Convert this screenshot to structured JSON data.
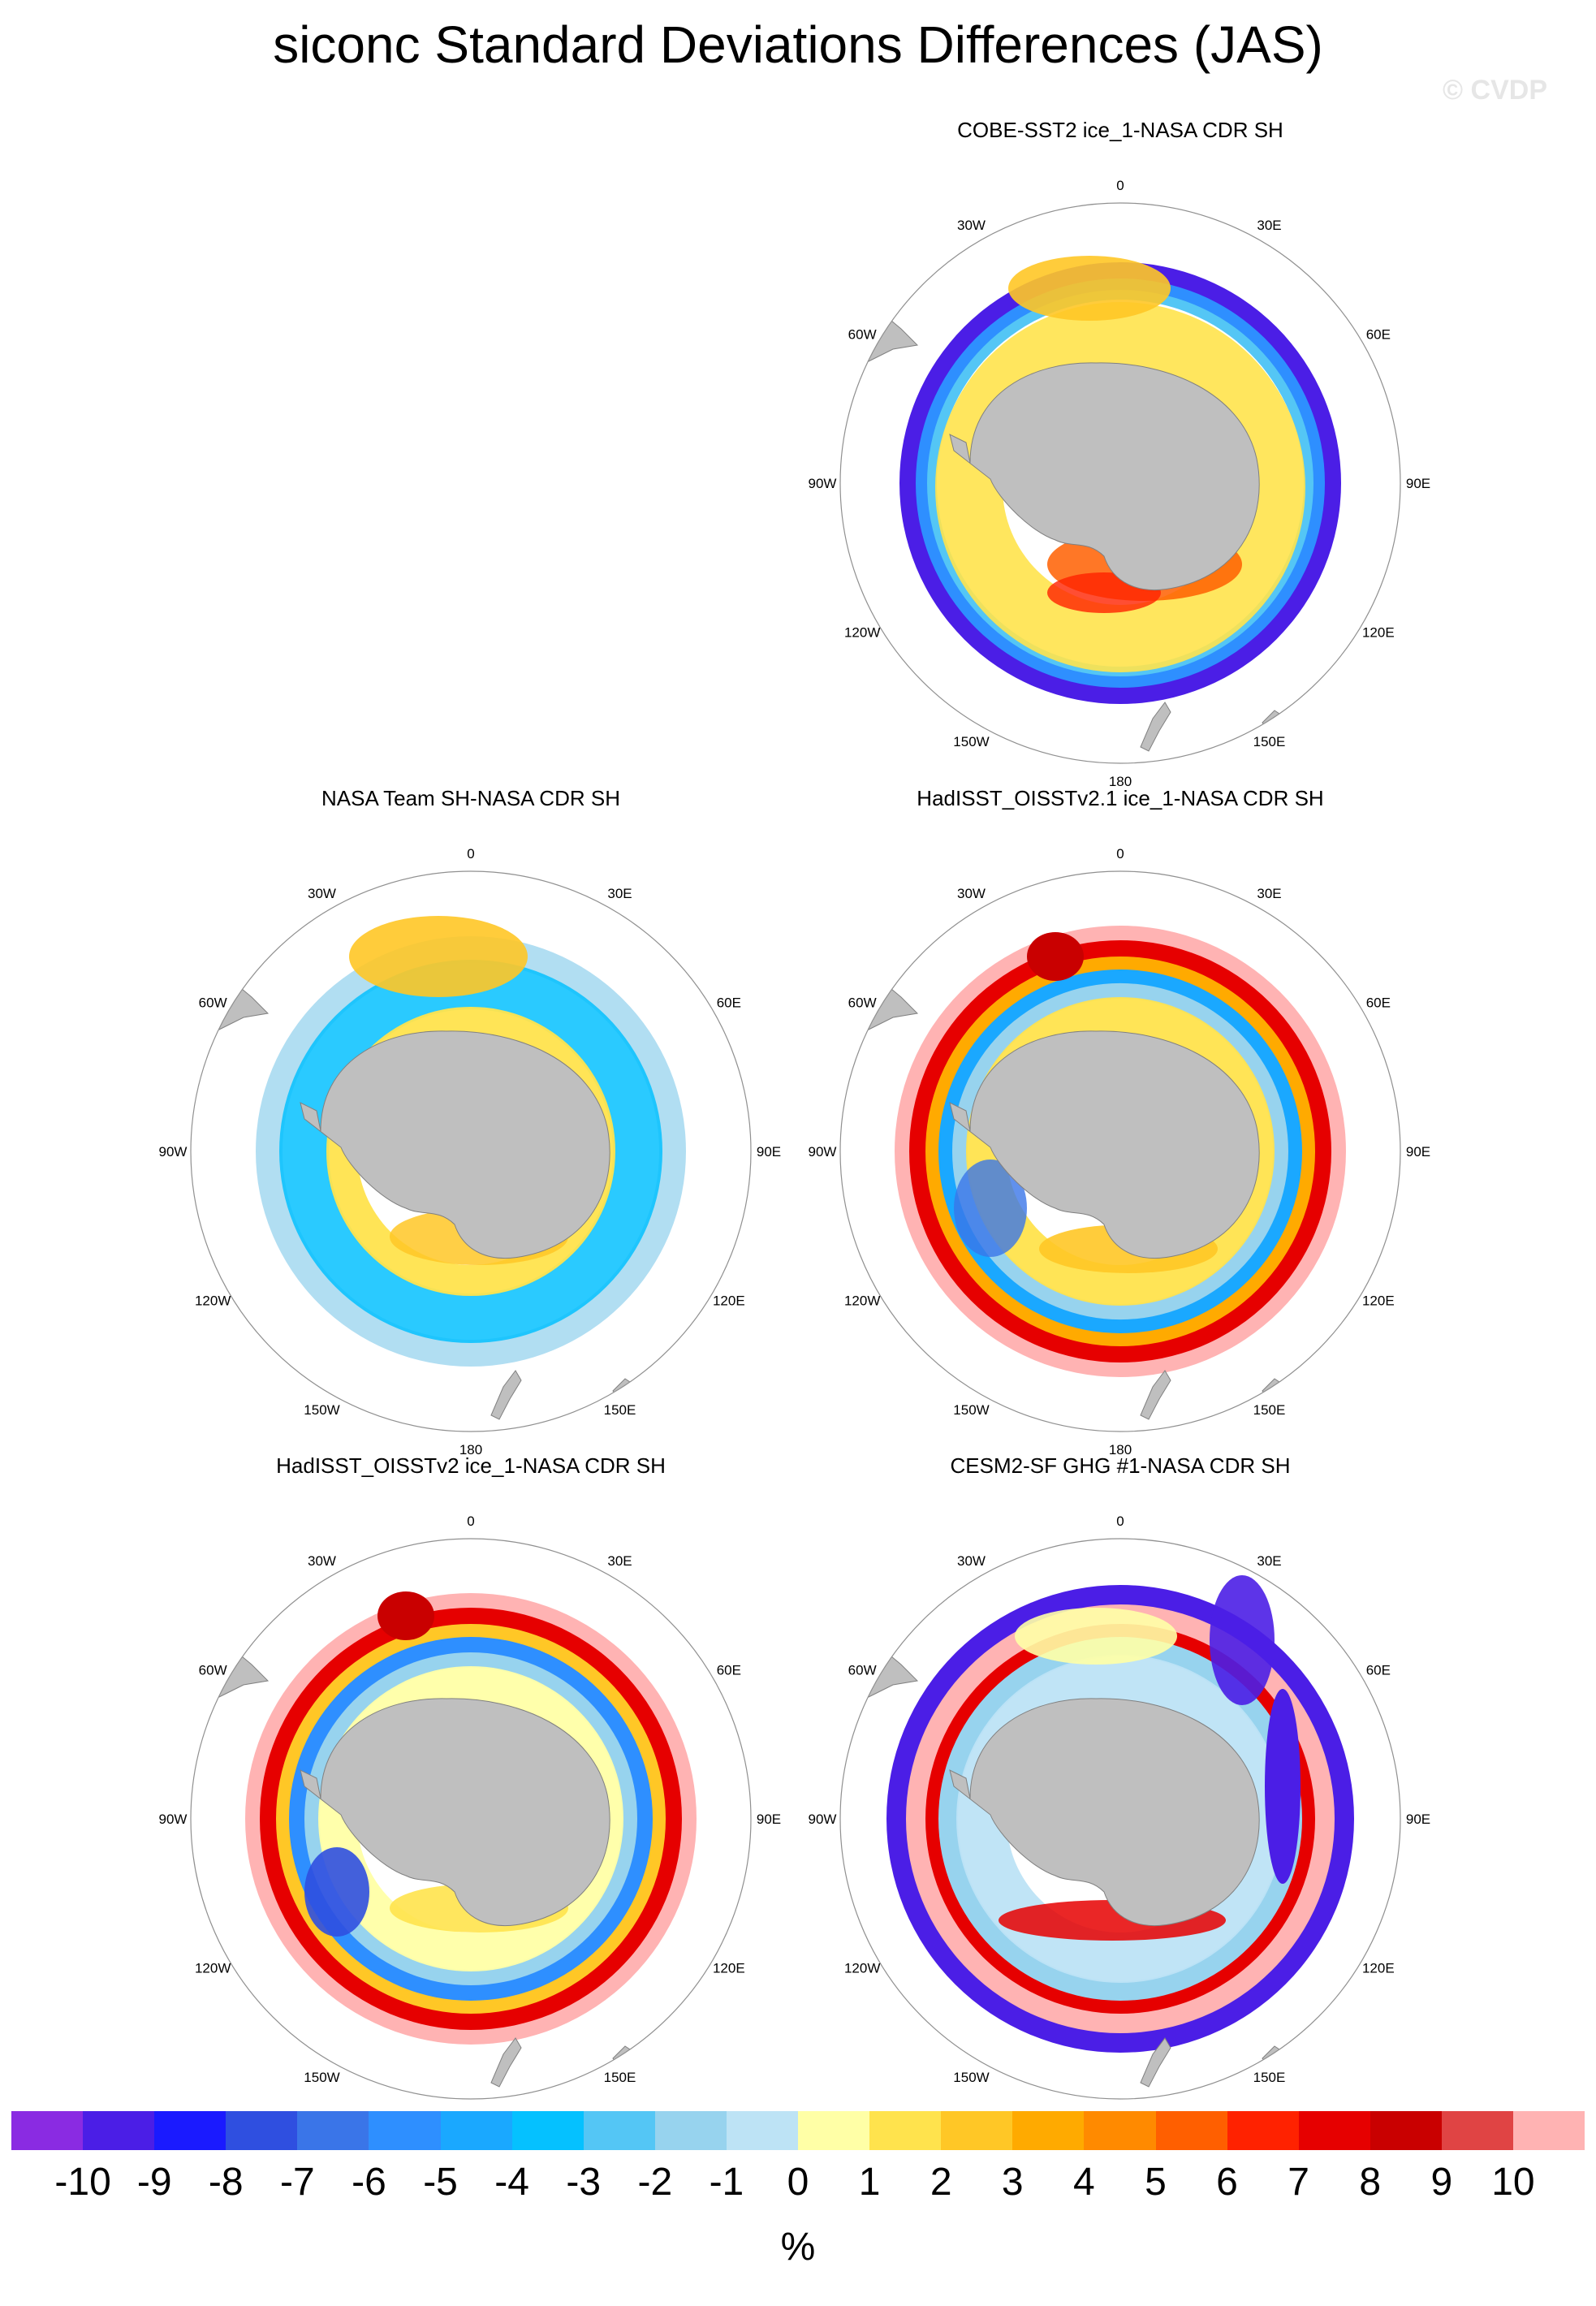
{
  "title": "siconc Standard Deviations Differences (JAS)",
  "watermark": "© CVDP",
  "units": "%",
  "colors": {
    "land": "#bfbfbf",
    "coast": "#808080",
    "circle": "#909090",
    "colorbar": [
      "#8a2be2",
      "#4b1ee6",
      "#1a1aff",
      "#2f4fe0",
      "#3a75e8",
      "#2e8fff",
      "#1aa8ff",
      "#05c1ff",
      "#54c6f5",
      "#97d3ee",
      "#bde3f5",
      "#ffffa6",
      "#ffe34d",
      "#ffc726",
      "#ffaa00",
      "#ff8a00",
      "#ff5f00",
      "#ff2200",
      "#e60000",
      "#c90000",
      "#e04444",
      "#ffb3b3"
    ]
  },
  "colorbar_ticks": [
    "-10",
    "-9",
    "-8",
    "-7",
    "-6",
    "-5",
    "-4",
    "-3",
    "-2",
    "-1",
    "0",
    "1",
    "2",
    "3",
    "4",
    "5",
    "6",
    "7",
    "8",
    "9",
    "10"
  ],
  "map_labels": {
    "top": "0",
    "bottom": "180",
    "lon30w": "30W",
    "lon30e": "30E",
    "lon60w": "60W",
    "lon60e": "60E",
    "lon90w": "90W",
    "lon90e": "90E",
    "lon120w": "120W",
    "lon120e": "120E",
    "lon150w": "150W",
    "lon150e": "150E"
  },
  "panels": [
    {
      "title": "COBE-SST2 ice_1-NASA CDR SH",
      "style": "cobe"
    },
    {
      "title": "NASA Team SH-NASA CDR SH",
      "style": "team"
    },
    {
      "title": "HadISST_OISSTv2.1 ice_1-NASA CDR SH",
      "style": "had21"
    },
    {
      "title": "HadISST_OISSTv2 ice_1-NASA CDR SH",
      "style": "had2"
    },
    {
      "title": "CESM2-SF GHG #1-NASA CDR SH",
      "style": "cesm"
    }
  ]
}
